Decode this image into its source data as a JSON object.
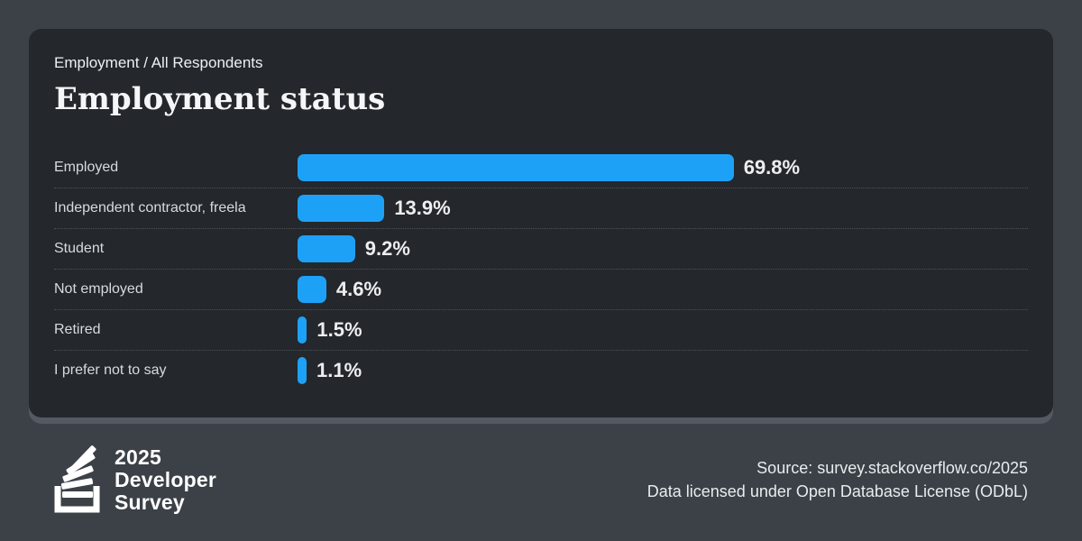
{
  "card": {
    "breadcrumb": "Employment / All Respondents",
    "title": "Employment status"
  },
  "chart_data": {
    "type": "bar",
    "orientation": "horizontal",
    "title": "Employment status",
    "categories": [
      "Employed",
      "Independent contractor, freela",
      "Student",
      "Not employed",
      "Retired",
      "I prefer not to say"
    ],
    "values": [
      69.8,
      13.9,
      9.2,
      4.6,
      1.5,
      1.1
    ],
    "value_labels": [
      "69.8%",
      "13.9%",
      "9.2%",
      "4.6%",
      "1.5%",
      "1.1%"
    ],
    "unit": "%",
    "xlim": [
      0,
      100
    ],
    "bar_color": "#1da1f7",
    "grid": false,
    "legend": false
  },
  "footer": {
    "logo_lines": [
      "2025",
      "Developer",
      "Survey"
    ],
    "source_line1": "Source: survey.stackoverflow.co/2025",
    "source_line2": "Data licensed under Open Database License (ODbL)"
  },
  "colors": {
    "page_background": "#3c4147",
    "card_background": "#24272b",
    "card_bottom_edge": "#545a61",
    "bar": "#1da1f7",
    "separator": "#4e5358",
    "text_primary": "#f5f6f7",
    "text_secondary": "#d8dbde"
  }
}
